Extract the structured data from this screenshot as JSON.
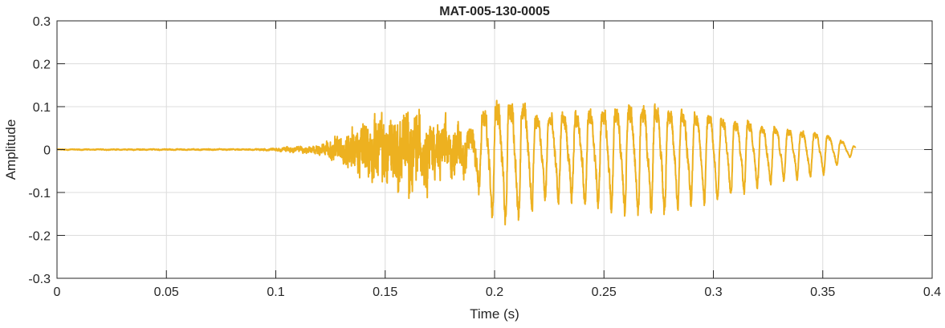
{
  "chart_data": {
    "type": "line",
    "title": "MAT-005-130-0005",
    "xlabel": "Time (s)",
    "ylabel": "Amplitude",
    "xlim": [
      0,
      0.4
    ],
    "ylim": [
      -0.3,
      0.3
    ],
    "xticks": [
      0,
      0.05,
      0.1,
      0.15,
      0.2,
      0.25,
      0.3,
      0.35,
      0.4
    ],
    "xtick_labels": [
      "0",
      "0.05",
      "0.1",
      "0.15",
      "0.2",
      "0.25",
      "0.3",
      "0.35",
      "0.4"
    ],
    "yticks": [
      -0.3,
      -0.2,
      -0.1,
      0,
      0.1,
      0.2,
      0.3
    ],
    "ytick_labels": [
      "-0.3",
      "-0.2",
      "-0.1",
      "0",
      "0.1",
      "0.2",
      "0.3"
    ],
    "grid": true,
    "series": [
      {
        "name": "MAT-005-130-0005",
        "color": "#EDB120",
        "duration": 0.365,
        "dominant_frequency_hz": 165,
        "envelope_time": [
          0,
          0.09,
          0.1,
          0.12,
          0.13,
          0.14,
          0.15,
          0.16,
          0.17,
          0.18,
          0.19,
          0.2,
          0.21,
          0.22,
          0.25,
          0.27,
          0.3,
          0.33,
          0.35,
          0.365
        ],
        "envelope_amplitude": [
          0.002,
          0.003,
          0.006,
          0.02,
          0.06,
          0.12,
          0.15,
          0.17,
          0.14,
          0.1,
          0.12,
          0.18,
          0.21,
          0.13,
          0.15,
          0.17,
          0.13,
          0.08,
          0.06,
          0.01
        ],
        "noise_fraction_time": [
          0,
          0.12,
          0.13,
          0.185,
          0.195,
          0.365
        ],
        "noise_fraction": [
          0.8,
          0.8,
          0.9,
          0.85,
          0.25,
          0.15
        ]
      }
    ]
  }
}
